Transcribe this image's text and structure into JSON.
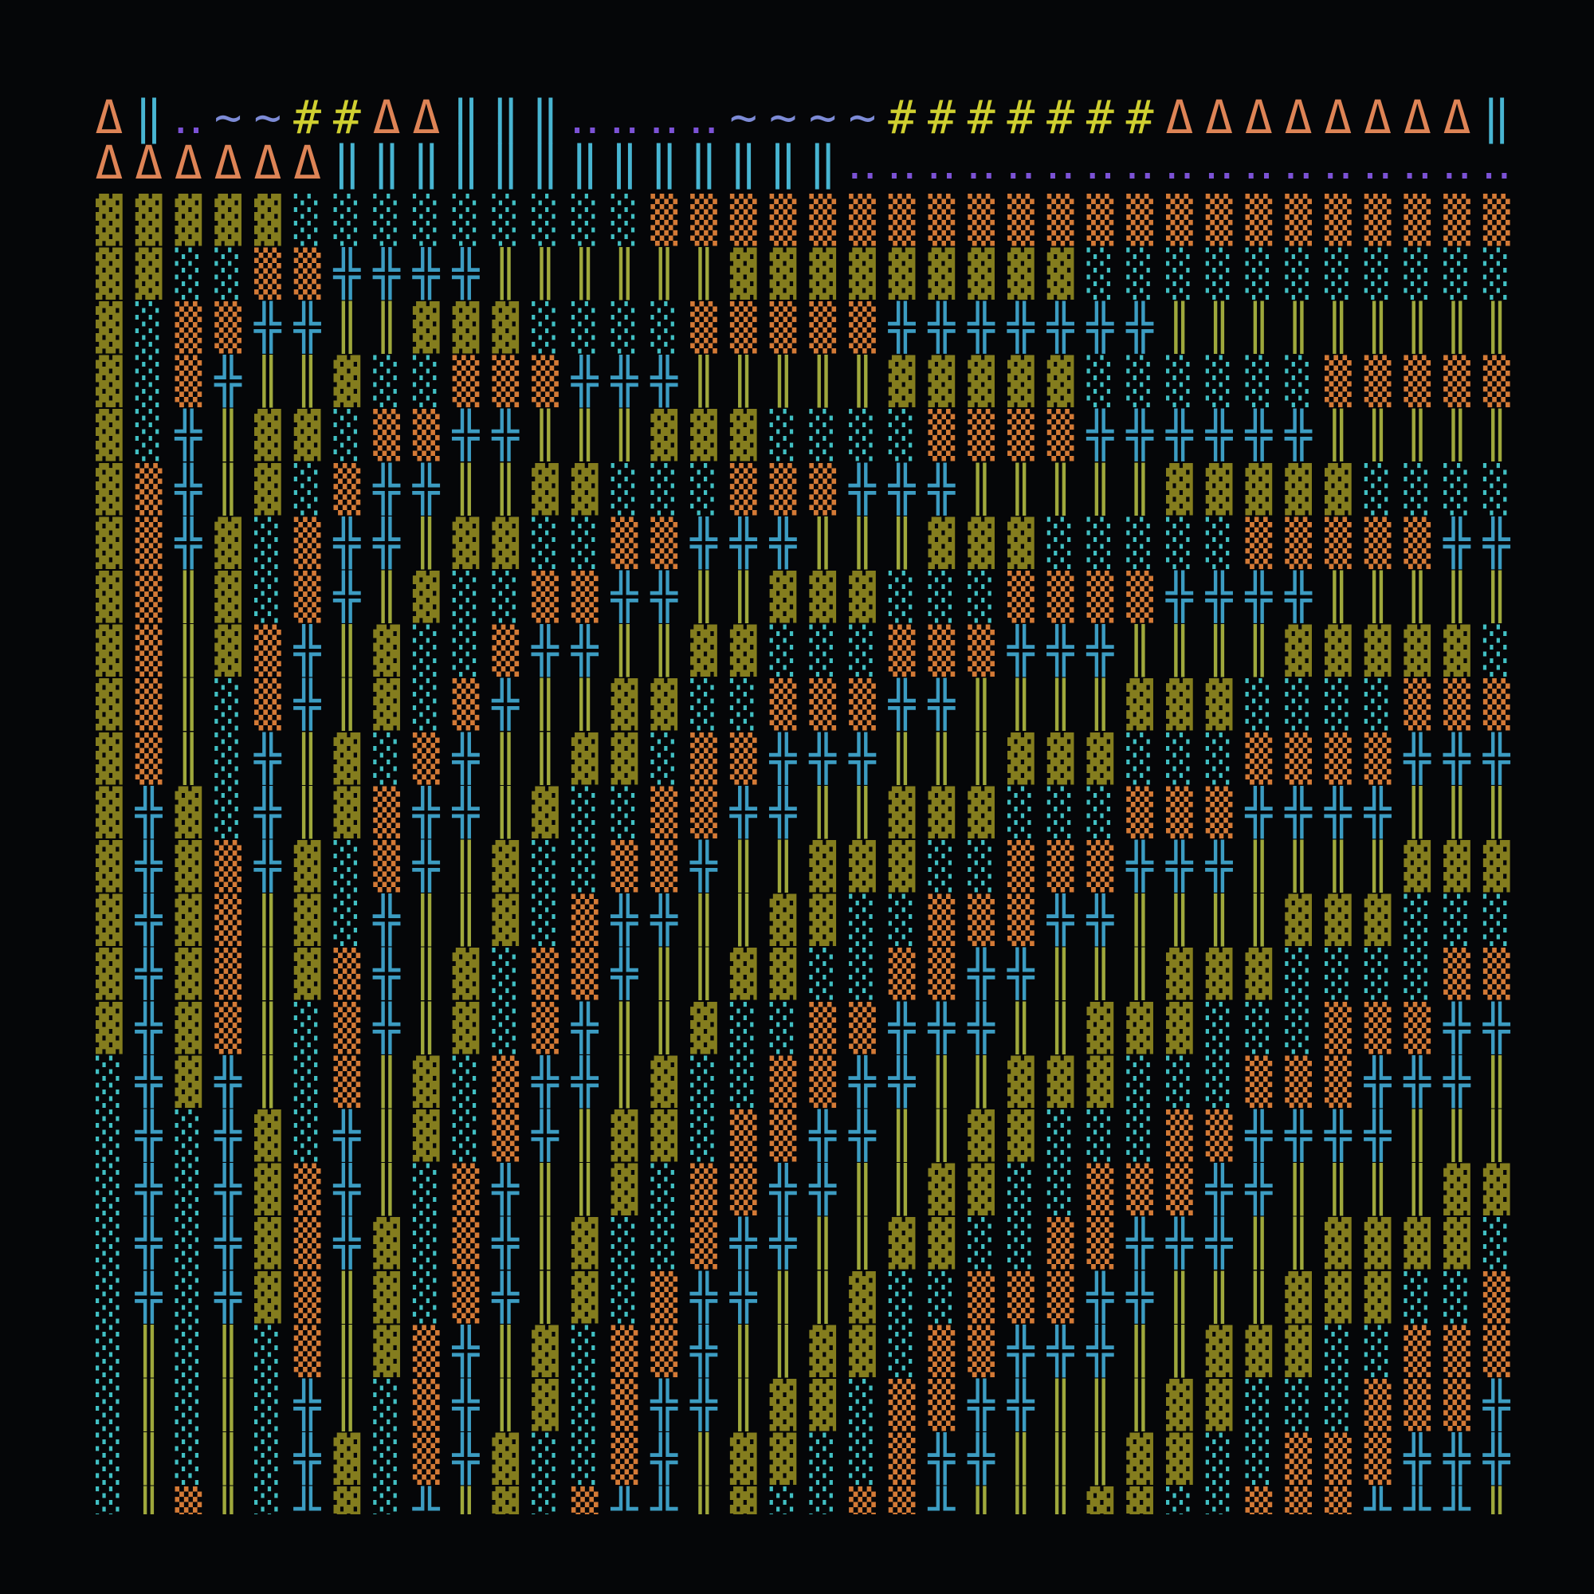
{
  "map": {
    "header": [
      "Δ‖‥~~##ΔΔ‖‖‖‥‥‥‥~~~~#######ΔΔΔΔΔΔΔΔ‖",
      "ΔΔΔΔΔΔ‖‖‖‖‖‖‖‖‖‖‖‖‖‥‥‥‥‥‥‥‥‥‥‥‥‥‥‥‥‥"
    ],
    "rows": [
      "▓▓▓▓▓░░░░░░░░░▒▒▒▒▒▒▒▒▒▒▒▒▒▒▒▒▒▒▒▒▒▒",
      "▓▓░░▒▒╬╬╬╬║║║║║║▓▓▓▓▓▓▓▓▓░░░░░░░░░░░",
      "▓░▒▒╬╬║║▓▓▓░░░░▒▒▒▒▒╬╬╬╬╬╬╬║║║║║║║║║",
      "▓░▒╬║║▓░░▒▒▒╬╬╬║║║║║▓▓▓▓▓░░░░░░▒▒▒▒▒",
      "▓░╬║▓▓░▒▒╬╬║║║▓▓▓░░░░▒▒▒▒╬╬╬╬╬╬║║║║║",
      "▓▒╬║▓░▒╬╬║║▓▓░░░▒▒▒╬╬╬║║║║║▓▓▓▓▓░░░░",
      "▓▒╬▓░▒╬╬║▓▓░░▒▒╬╬╬║║║▓▓▓░░░░░▒▒▒▒▒╬╬",
      "▓▒║▓░▒╬║▓░░▒▒╬╬║║▓▓▓░░░▒▒▒▒╬╬╬╬║║║║║",
      "▓▒║▓▒╬║▓░░▒╬╬║║▓▓░░░▒▒▒╬╬╬║║║║▓▓▓▓▓░",
      "▓▒║░▒╬║▓░▒╬║║▓▓░░▒▒▒╬╬║║║║▓▓▓░░░░▒▒▒",
      "▓▒║░╬║▓░▒╬║║▓▓░▒▒╬╬╬║║║▓▓▓░░░▒▒▒▒╬╬╬",
      "▓╬▓░╬║▓▒╬╬║▓░░▒▒╬╬║║▓▓▓░░░▒▒▒╬╬╬╬║║║",
      "▓╬▓▒╬▓░▒╬║▓░░▒▒╬║║▓▓▓░░▒▒▒╬╬╬║║║║▓▓▓",
      "▓╬▓▒║▓░╬║║▓░▒╬╬║║▓▓░░▒▒▒╬╬║║║║▓▓▓░░░",
      "▓╬▓▒║▓▒╬║▓░▒▒╬║║▓▓░░▒▒╬╬║║║▓▓▓░░░░▒▒",
      "▓╬▓▒║░▒╬║▓░▒╬║║▓░░▒▒╬╬╬║║▓▓▓░░░▒▒▒╬╬",
      "░╬▓╬║░▒║▓░▒╬╬║▓░░▒▒╬╬║║▓▓▓░░░▒▒▒╬╬╬║",
      "░╬░╬▓░╬║▓░▒╬║▓▓░▒▒╬╬║║▓▓░░░▒▒╬╬╬╬║║║",
      "░╬░╬▓▒╬║░▒╬║║▓░▒▒╬╬║║▓▓░░▒▒▒╬╬║║║║▓▓",
      "░╬░╬▓▒╬▓░▒╬║▓░░▒╬╬║║▓▓░░▒▒╬╬╬║║▓▓▓▓░",
      "░╬░╬▓▒║▓░▒╬║▓░▒╬╬║║▓░░▒▒▒╬╬║║║▓▓▓░░▒",
      "░║░║░▒║▓▒╬║▓░▒▒╬║║▓▓░▒▒╬╬╬║║▓▓▓░░▒▒▒",
      "░║░║░╬║░▒╬║▓░▒╬╬║▓▓░▒▒╬╬║║║▓▓░░░▒▒▒╬",
      "░║░║░╬▓░▒╬▓░░▒╬║▓▓░░▒╬╬║║║▓▓░░▒▒▒╬╬╬",
      "░║▒║░╬▓░╬║▓░▒╬╬║▓░░▒▒╬║║║▓▓░░▒▒▒╬╬╬║"
    ]
  }
}
